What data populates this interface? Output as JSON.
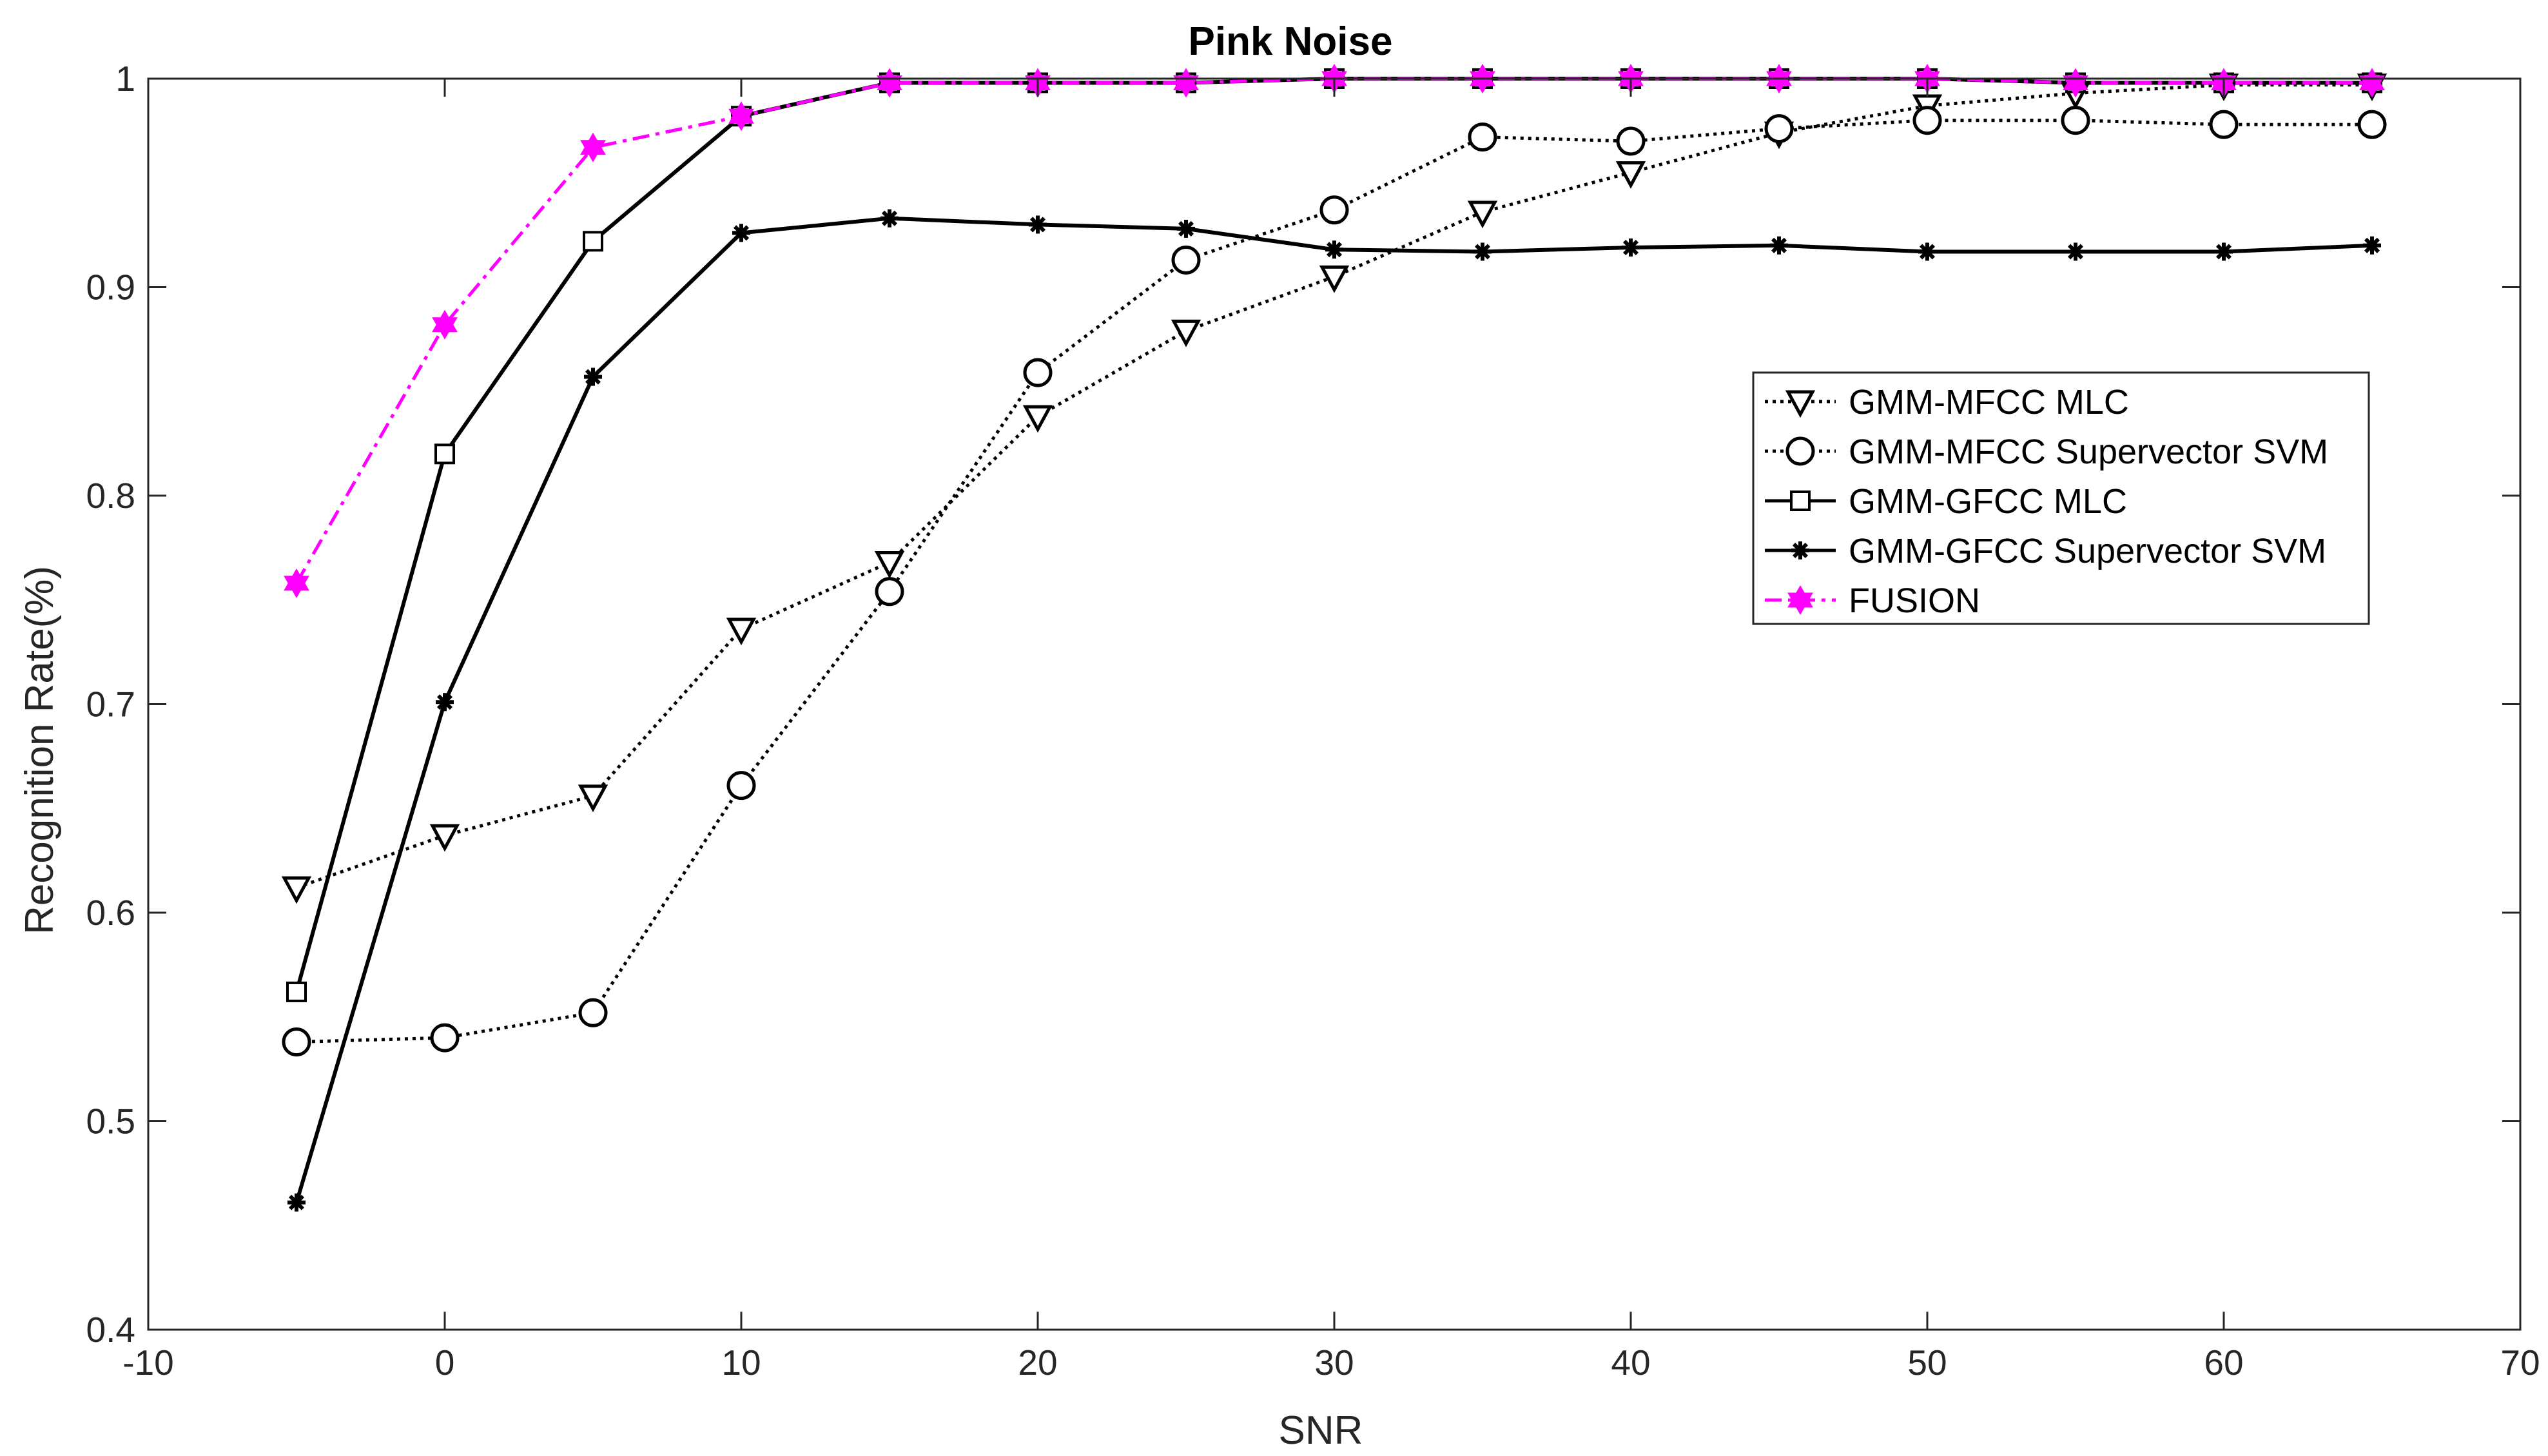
{
  "chart_data": {
    "type": "line",
    "title": "Pink Noise",
    "xlabel": "SNR",
    "ylabel": "Recognition Rate(%)",
    "xlim": [
      -10,
      70
    ],
    "ylim": [
      0.4,
      1.0
    ],
    "xticks": [
      -10,
      0,
      10,
      20,
      30,
      40,
      50,
      60,
      70
    ],
    "yticks": [
      0.4,
      0.5,
      0.6,
      0.7,
      0.8,
      0.9,
      1.0
    ],
    "xtick_labels": [
      "-10",
      "0",
      "10",
      "20",
      "30",
      "40",
      "50",
      "60",
      "70"
    ],
    "ytick_labels": [
      "0.4",
      "0.5",
      "0.6",
      "0.7",
      "0.8",
      "0.9",
      "1"
    ],
    "grid": false,
    "legend_position": "right",
    "x": [
      -5,
      0,
      5,
      10,
      15,
      20,
      25,
      30,
      35,
      40,
      45,
      50,
      55,
      60,
      65
    ],
    "series": [
      {
        "name": "GMM-MFCC MLC",
        "values": [
          0.612,
          0.637,
          0.656,
          0.736,
          0.768,
          0.838,
          0.879,
          0.905,
          0.936,
          0.955,
          0.974,
          0.987,
          0.993,
          0.997,
          0.997
        ],
        "color": "#000000",
        "dash": "dotted",
        "marker": "triangle-down"
      },
      {
        "name": "GMM-MFCC Supervector SVM",
        "values": [
          0.538,
          0.54,
          0.552,
          0.661,
          0.754,
          0.859,
          0.913,
          0.937,
          0.972,
          0.97,
          0.976,
          0.98,
          0.98,
          0.978,
          0.978
        ],
        "color": "#000000",
        "dash": "dotted",
        "marker": "circle"
      },
      {
        "name": "GMM-GFCC MLC",
        "values": [
          0.562,
          0.82,
          0.922,
          0.982,
          0.998,
          0.998,
          0.998,
          1.0,
          1.0,
          1.0,
          1.0,
          1.0,
          0.998,
          0.998,
          0.998
        ],
        "color": "#000000",
        "dash": "solid",
        "marker": "square"
      },
      {
        "name": "GMM-GFCC Supervector SVM",
        "values": [
          0.461,
          0.701,
          0.857,
          0.926,
          0.933,
          0.93,
          0.928,
          0.918,
          0.917,
          0.919,
          0.92,
          0.917,
          0.917,
          0.917,
          0.92
        ],
        "color": "#000000",
        "dash": "solid",
        "marker": "asterisk"
      },
      {
        "name": "FUSION",
        "values": [
          0.758,
          0.882,
          0.967,
          0.982,
          0.998,
          0.998,
          0.998,
          1.0,
          1.0,
          1.0,
          1.0,
          1.0,
          0.998,
          0.998,
          0.998
        ],
        "color": "#ff00ff",
        "dash": "dashdot",
        "marker": "hexagram"
      }
    ]
  }
}
